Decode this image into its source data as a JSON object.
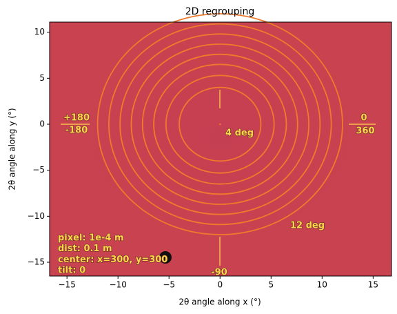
{
  "chart_data": {
    "type": "image_rings",
    "title": "2D regrouping",
    "x_label": "2θ angle along x (°)",
    "y_label": "2θ angle along y (°)",
    "xlim": [
      -16.7,
      16.8
    ],
    "ylim": [
      -16.5,
      11.1
    ],
    "xticks": [
      {
        "value": -15,
        "label": "−15"
      },
      {
        "value": -10,
        "label": "−10"
      },
      {
        "value": -5,
        "label": "−5"
      },
      0,
      5,
      10,
      15
    ],
    "yticks": [
      10,
      5,
      0,
      {
        "value": -5,
        "label": "−5"
      },
      {
        "value": -10,
        "label": "−10"
      },
      {
        "value": -15,
        "label": "−15"
      }
    ],
    "ring_radii": [
      4,
      5.3,
      6.5,
      7.6,
      8.7,
      9.8,
      10.9,
      12
    ],
    "ring_color": "#f07a2c",
    "background_color": "#c8424f",
    "annotations": [
      "+180",
      "-180",
      "0",
      "360",
      "4 deg",
      "12 deg",
      "-90"
    ],
    "info": [
      "pixel: 1e-4 m",
      "dist: 0.1 m",
      "center: x=300, y=300",
      "tilt: 0"
    ]
  }
}
